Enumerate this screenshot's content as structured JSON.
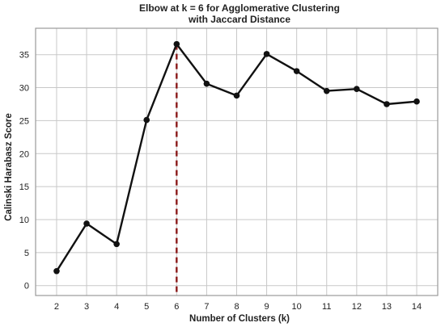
{
  "chart_data": {
    "type": "line",
    "title_lines": [
      "Elbow at k = 6 for Agglomerative Clustering",
      "with Jaccard Distance"
    ],
    "xlabel": "Number of Clusters (k)",
    "ylabel": "Calinski Harabasz Score",
    "x": [
      2,
      3,
      4,
      5,
      6,
      7,
      8,
      9,
      10,
      11,
      12,
      13,
      14
    ],
    "series": [
      {
        "values": [
          2.2,
          9.4,
          6.3,
          25.1,
          36.6,
          30.6,
          28.8,
          35.1,
          32.5,
          29.5,
          29.8,
          27.5,
          27.9
        ]
      }
    ],
    "x_ticks": [
      2,
      3,
      4,
      5,
      6,
      7,
      8,
      9,
      10,
      11,
      12,
      13,
      14
    ],
    "y_ticks": [
      0,
      5,
      10,
      15,
      20,
      25,
      30,
      35
    ],
    "xlim": [
      1.3,
      14.7
    ],
    "ylim": [
      -1.5,
      39
    ],
    "grid": true,
    "elbow": {
      "x": 6,
      "y": 36.6
    },
    "colors": {
      "line": "#111111",
      "marker": "#111111",
      "elbow_line": "#8b1a1a",
      "grid": "#c8c8c8"
    }
  }
}
